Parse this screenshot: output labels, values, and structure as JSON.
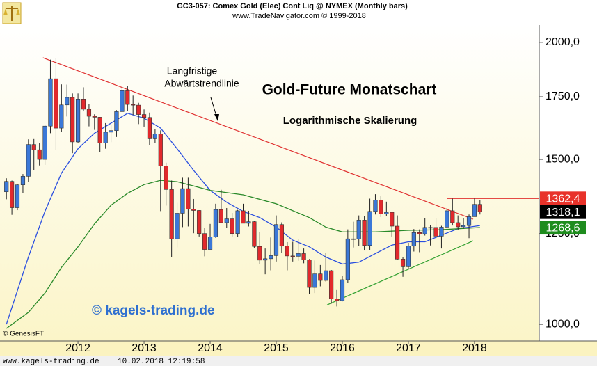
{
  "chart_data": {
    "type": "candlestick",
    "header": [
      "GC3-057:  Comex Gold (Elec) Cont Liq @ NYMEX  (Monthly bars)",
      "www.TradeNavigator.com © 1999-2018"
    ],
    "title": "Gold-Future Monatschart",
    "subtitle": "Logarithmische Skalierung",
    "annotation": [
      "Langfristige",
      "Abwärtstrendlinie"
    ],
    "watermark": "© kagels-trading.de",
    "source": "© GenesisFT",
    "footer": "www.kagels-trading.de    10.02.2018 12:19:58",
    "log_scale": true,
    "up_color": "#3b78d8",
    "down_color": "#e2292c",
    "xlim": [
      2010.82,
      2018.98
    ],
    "xticks": [
      2012,
      2013,
      2014,
      2015,
      2016,
      2017,
      2018
    ],
    "ylim": [
      960,
      2087
    ],
    "yticks": [
      {
        "value": 1000,
        "label": "1000,0"
      },
      {
        "value": 1250,
        "label": "1250,0"
      },
      {
        "value": 1500,
        "label": "1500,0"
      },
      {
        "value": 1750,
        "label": "1750,0"
      },
      {
        "value": 2000,
        "label": "2000,0"
      }
    ],
    "x": [
      2010.917,
      2011,
      2011.083,
      2011.167,
      2011.25,
      2011.333,
      2011.417,
      2011.5,
      2011.583,
      2011.667,
      2011.75,
      2011.833,
      2011.917,
      2012,
      2012.083,
      2012.167,
      2012.25,
      2012.333,
      2012.417,
      2012.5,
      2012.583,
      2012.667,
      2012.75,
      2012.833,
      2012.917,
      2013,
      2013.083,
      2013.167,
      2013.25,
      2013.333,
      2013.417,
      2013.5,
      2013.583,
      2013.667,
      2013.75,
      2013.833,
      2013.917,
      2014,
      2014.083,
      2014.167,
      2014.25,
      2014.333,
      2014.417,
      2014.5,
      2014.583,
      2014.667,
      2014.75,
      2014.833,
      2014.917,
      2015,
      2015.083,
      2015.167,
      2015.25,
      2015.333,
      2015.417,
      2015.5,
      2015.583,
      2015.667,
      2015.75,
      2015.833,
      2015.917,
      2016,
      2016.083,
      2016.167,
      2016.25,
      2016.333,
      2016.417,
      2016.5,
      2016.583,
      2016.667,
      2016.75,
      2016.833,
      2016.917,
      2017,
      2017.083,
      2017.167,
      2017.25,
      2017.333,
      2017.417,
      2017.5,
      2017.583,
      2017.667,
      2017.75,
      2017.833,
      2017.917,
      2018,
      2018.083
    ],
    "open": [
      1385,
      1421,
      1332,
      1409,
      1439,
      1556,
      1536,
      1500,
      1628,
      1829,
      1620,
      1715,
      1747,
      1566,
      1740,
      1697,
      1668,
      1664,
      1562,
      1604,
      1610,
      1687,
      1776,
      1717,
      1714,
      1675,
      1663,
      1578,
      1597,
      1476,
      1393,
      1234,
      1314,
      1396,
      1327,
      1323,
      1250,
      1202,
      1240,
      1326,
      1284,
      1296,
      1250,
      1322,
      1282,
      1287,
      1211,
      1171,
      1175,
      1184,
      1278,
      1212,
      1183,
      1182,
      1190,
      1172,
      1095,
      1132,
      1114,
      1141,
      1065,
      1060,
      1116,
      1234,
      1233,
      1292,
      1214,
      1320,
      1357,
      1312,
      1317,
      1273,
      1174,
      1152,
      1212,
      1253,
      1249,
      1269,
      1269,
      1242,
      1270,
      1322,
      1284,
      1271,
      1275,
      1303,
      1343
    ],
    "high": [
      1432,
      1424,
      1412,
      1447,
      1576,
      1577,
      1561,
      1632,
      1917,
      1923,
      1804,
      1803,
      1764,
      1764,
      1791,
      1719,
      1676,
      1665,
      1640,
      1632,
      1693,
      1790,
      1798,
      1755,
      1724,
      1696,
      1683,
      1617,
      1611,
      1488,
      1424,
      1348,
      1434,
      1434,
      1361,
      1324,
      1267,
      1280,
      1345,
      1392,
      1331,
      1315,
      1325,
      1345,
      1322,
      1290,
      1255,
      1205,
      1238,
      1307,
      1285,
      1224,
      1225,
      1232,
      1205,
      1174,
      1170,
      1157,
      1191,
      1143,
      1088,
      1126,
      1263,
      1287,
      1307,
      1306,
      1362,
      1377,
      1370,
      1352,
      1318,
      1307,
      1180,
      1222,
      1264,
      1263,
      1298,
      1276,
      1298,
      1274,
      1331,
      1362,
      1307,
      1299,
      1310,
      1362.4,
      1358
    ],
    "low": [
      1360,
      1309,
      1324,
      1381,
      1420,
      1462,
      1478,
      1480,
      1600,
      1535,
      1604,
      1667,
      1523,
      1562,
      1688,
      1627,
      1613,
      1527,
      1540,
      1565,
      1585,
      1686,
      1691,
      1673,
      1636,
      1626,
      1554,
      1562,
      1321,
      1339,
      1180,
      1208,
      1270,
      1272,
      1251,
      1241,
      1182,
      1202,
      1237,
      1284,
      1268,
      1241,
      1240,
      1282,
      1272,
      1206,
      1160,
      1131,
      1142,
      1167,
      1191,
      1142,
      1167,
      1169,
      1162,
      1077,
      1080,
      1098,
      1111,
      1052,
      1045,
      1058,
      1107,
      1208,
      1212,
      1199,
      1200,
      1310,
      1302,
      1305,
      1241,
      1171,
      1124,
      1146,
      1196,
      1194,
      1244,
      1214,
      1237,
      1205,
      1266,
      1275,
      1261,
      1265,
      1236,
      1303,
      1310
    ],
    "close": [
      1421,
      1332,
      1409,
      1439,
      1556,
      1536,
      1500,
      1628,
      1829,
      1620,
      1715,
      1747,
      1566,
      1740,
      1697,
      1668,
      1664,
      1562,
      1604,
      1610,
      1687,
      1776,
      1717,
      1714,
      1675,
      1663,
      1578,
      1597,
      1476,
      1393,
      1234,
      1314,
      1396,
      1327,
      1323,
      1250,
      1202,
      1240,
      1326,
      1284,
      1296,
      1250,
      1322,
      1282,
      1287,
      1211,
      1171,
      1175,
      1184,
      1278,
      1212,
      1183,
      1182,
      1190,
      1172,
      1095,
      1132,
      1114,
      1141,
      1065,
      1060,
      1116,
      1234,
      1233,
      1292,
      1214,
      1320,
      1357,
      1312,
      1317,
      1273,
      1174,
      1152,
      1212,
      1253,
      1249,
      1269,
      1269,
      1242,
      1270,
      1322,
      1284,
      1271,
      1275,
      1303,
      1343,
      1318.1
    ],
    "lines": [
      {
        "color": "#2a4fe0",
        "x": [
          2010.917,
          2011.25,
          2011.5,
          2011.75,
          2012,
          2012.25,
          2012.5,
          2012.75,
          2013,
          2013.25,
          2013.5,
          2013.75,
          2014,
          2014.25,
          2014.5,
          2014.75,
          2015,
          2015.25,
          2015.5,
          2015.75,
          2016,
          2016.25,
          2016.5,
          2016.75,
          2017,
          2017.25,
          2017.5,
          2017.75,
          2018.083
        ],
        "values": [
          1000,
          1180,
          1320,
          1450,
          1540,
          1600,
          1640,
          1680,
          1660,
          1620,
          1540,
          1460,
          1390,
          1350,
          1320,
          1300,
          1270,
          1230,
          1210,
          1180,
          1160,
          1165,
          1190,
          1215,
          1225,
          1225,
          1245,
          1265,
          1275
        ]
      },
      {
        "color": "#2a8a2a",
        "x": [
          2010.917,
          2011.25,
          2011.5,
          2011.75,
          2012,
          2012.25,
          2012.5,
          2012.75,
          2013,
          2013.25,
          2013.5,
          2013.75,
          2014,
          2014.5,
          2015,
          2015.5,
          2015.75,
          2016,
          2016.5,
          2017,
          2017.5,
          2018.083
        ],
        "values": [
          990,
          1030,
          1080,
          1150,
          1210,
          1280,
          1340,
          1380,
          1410,
          1425,
          1420,
          1405,
          1390,
          1375,
          1345,
          1300,
          1270,
          1255,
          1255,
          1260,
          1262,
          1268.6
        ]
      }
    ],
    "trendlines": [
      {
        "color": "#e03030",
        "x": [
          2011.47,
          2017.98
        ],
        "values": [
          1926,
          1295
        ]
      },
      {
        "color": "#30a030",
        "x": [
          2015.77,
          2017.98
        ],
        "values": [
          1049,
          1228
        ]
      }
    ],
    "hline": {
      "color": "#e03030",
      "x": 2017.583,
      "value": 1362.4
    },
    "price_labels": [
      {
        "value": 1362.4,
        "label": "1362,4",
        "color": "#e8322a"
      },
      {
        "value": 1318.1,
        "label": "1318,1",
        "color": "#000000"
      },
      {
        "value": 1268.6,
        "label": "1268,6",
        "color": "#1e8c1e"
      }
    ]
  }
}
